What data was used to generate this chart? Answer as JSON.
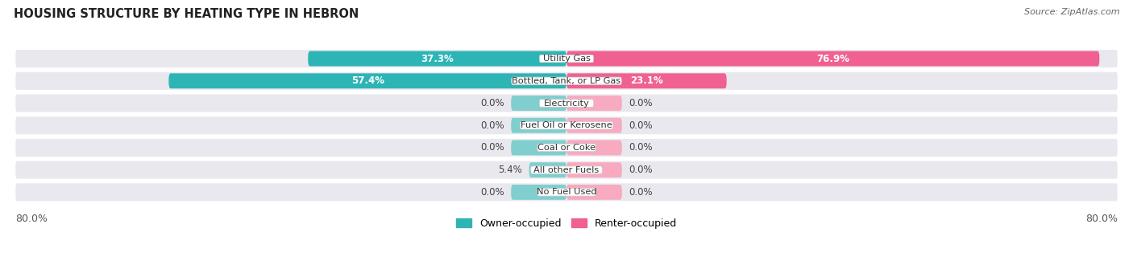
{
  "title": "HOUSING STRUCTURE BY HEATING TYPE IN HEBRON",
  "source": "Source: ZipAtlas.com",
  "categories": [
    "Utility Gas",
    "Bottled, Tank, or LP Gas",
    "Electricity",
    "Fuel Oil or Kerosene",
    "Coal or Coke",
    "All other Fuels",
    "No Fuel Used"
  ],
  "owner_values": [
    37.3,
    57.4,
    0.0,
    0.0,
    0.0,
    5.4,
    0.0
  ],
  "renter_values": [
    76.9,
    23.1,
    0.0,
    0.0,
    0.0,
    0.0,
    0.0
  ],
  "owner_color_dark": "#2db5b5",
  "owner_color_light": "#80cece",
  "renter_color_dark": "#f06090",
  "renter_color_light": "#f8aac0",
  "axis_min": -80.0,
  "axis_max": 80.0,
  "stub_size": 8.0,
  "background_color": "#ffffff",
  "row_bg_even": "#f4f4f6",
  "row_bg_odd": "#eaeaee",
  "label_fontsize": 8.5,
  "title_fontsize": 10.5,
  "source_fontsize": 8
}
